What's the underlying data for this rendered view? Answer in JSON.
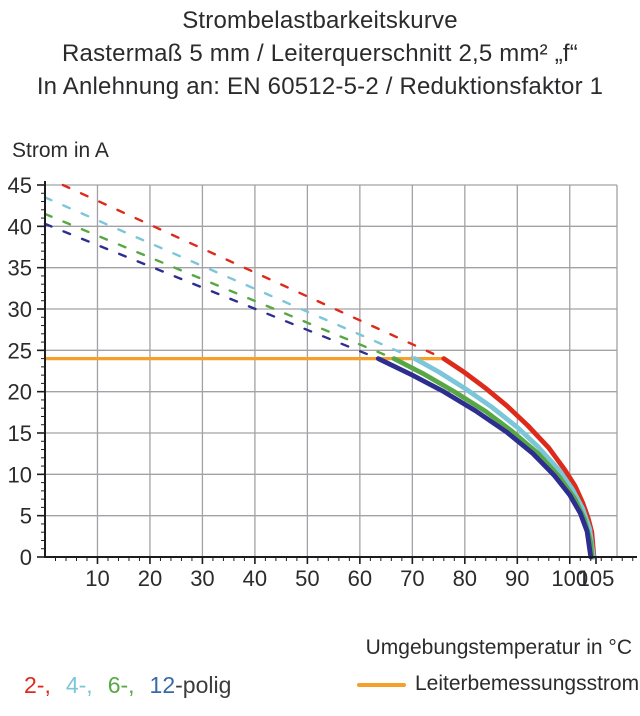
{
  "header": {
    "title_lines": [
      "Strombelastbarkeitskurve",
      "Rastermaß 5 mm / Leiterquerschnitt 2,5 mm² „f“",
      "In Anlehnung an: EN 60512-5-2 / Reduktionsfaktor 1"
    ]
  },
  "chart_data": {
    "type": "line",
    "title": "Strombelastbarkeitskurve",
    "ylabel": "Strom in A",
    "xlabel": "Umgebungstemperatur in °C",
    "x_domain": [
      0,
      109
    ],
    "y_domain": [
      0,
      45
    ],
    "x_ticks": [
      {
        "v": 10,
        "label": "10"
      },
      {
        "v": 20,
        "label": "20"
      },
      {
        "v": 30,
        "label": "30"
      },
      {
        "v": 40,
        "label": "40"
      },
      {
        "v": 50,
        "label": "50"
      },
      {
        "v": 60,
        "label": "60"
      },
      {
        "v": 70,
        "label": "70"
      },
      {
        "v": 80,
        "label": "80"
      },
      {
        "v": 90,
        "label": "90"
      },
      {
        "v": 100,
        "label": "100"
      },
      {
        "v": 105,
        "label": "105"
      }
    ],
    "y_ticks": [
      {
        "v": 0,
        "label": "0"
      },
      {
        "v": 5,
        "label": "5"
      },
      {
        "v": 10,
        "label": "10"
      },
      {
        "v": 15,
        "label": "15"
      },
      {
        "v": 20,
        "label": "20"
      },
      {
        "v": 25,
        "label": "25"
      },
      {
        "v": 30,
        "label": "30"
      },
      {
        "v": 35,
        "label": "35"
      },
      {
        "v": 40,
        "label": "40"
      },
      {
        "v": 45,
        "label": "45"
      }
    ],
    "x_minor_step": 2,
    "y_minor_step": 1,
    "grid": {
      "color": "#a2a2a6",
      "x_lines": [
        10,
        20,
        30,
        40,
        50,
        60,
        70,
        80,
        90,
        100
      ],
      "y_lines": [
        5,
        10,
        15,
        20,
        25,
        30,
        35,
        40,
        45
      ]
    },
    "axis_color": "#1c1c1e",
    "tick_label_color": "#2b2b2d",
    "rated_line": {
      "name": "Leiterbemessungsstrom",
      "color": "#f6a02c",
      "value": 24,
      "x_start": 0,
      "x_end": 76
    },
    "series": [
      {
        "name": "2-polig",
        "color": "#dd2a1b",
        "dashed": [
          [
            3.4,
            45
          ],
          [
            76,
            24
          ]
        ],
        "solid": [
          [
            76,
            24
          ],
          [
            80,
            22.3
          ],
          [
            84,
            20.4
          ],
          [
            88,
            18.3
          ],
          [
            92,
            15.9
          ],
          [
            96,
            13.2
          ],
          [
            99,
            10.6
          ],
          [
            101,
            8.6
          ],
          [
            102.5,
            6.5
          ],
          [
            103.5,
            4.7
          ],
          [
            104.2,
            3.0
          ],
          [
            104.6,
            0
          ]
        ]
      },
      {
        "name": "4-polig",
        "color": "#7bc6d8",
        "dashed": [
          [
            0,
            43.5
          ],
          [
            70.5,
            24
          ]
        ],
        "solid": [
          [
            70.5,
            24
          ],
          [
            75,
            22.4
          ],
          [
            80,
            20.4
          ],
          [
            85,
            18.2
          ],
          [
            90,
            15.7
          ],
          [
            94,
            13.3
          ],
          [
            98,
            10.5
          ],
          [
            100.5,
            8.2
          ],
          [
            102.5,
            5.8
          ],
          [
            103.8,
            3.4
          ],
          [
            104.5,
            0
          ]
        ]
      },
      {
        "name": "6-polig",
        "color": "#57a845",
        "dashed": [
          [
            0,
            41.5
          ],
          [
            66.5,
            24
          ]
        ],
        "solid": [
          [
            66.5,
            24
          ],
          [
            72,
            22.2
          ],
          [
            78,
            20.0
          ],
          [
            84,
            17.6
          ],
          [
            89,
            15.2
          ],
          [
            94,
            12.5
          ],
          [
            98,
            9.7
          ],
          [
            101,
            7.0
          ],
          [
            102.8,
            4.6
          ],
          [
            104,
            1.7
          ],
          [
            104.2,
            0
          ]
        ]
      },
      {
        "name": "12-polig",
        "color": "#2d2e8f",
        "dashed": [
          [
            0,
            40.3
          ],
          [
            63.5,
            24
          ]
        ],
        "solid": [
          [
            63.5,
            24
          ],
          [
            70,
            22.0
          ],
          [
            76,
            20.0
          ],
          [
            82,
            17.7
          ],
          [
            88,
            15.1
          ],
          [
            93,
            12.5
          ],
          [
            97,
            9.9
          ],
          [
            100,
            7.5
          ],
          [
            102,
            5.3
          ],
          [
            103.3,
            3.1
          ],
          [
            104,
            0
          ]
        ]
      }
    ]
  },
  "legend": {
    "pole_items": [
      {
        "label": "2-,",
        "color": "#dd2a1b",
        "gap": true
      },
      {
        "label": "4-,",
        "color": "#7bc6d8",
        "gap": true
      },
      {
        "label": "6-,",
        "color": "#57a845",
        "gap": true
      },
      {
        "label": "12",
        "color": "#3a6aa5",
        "gap": false
      },
      {
        "label": "-polig",
        "color": "#3c3c3e",
        "gap": false
      }
    ],
    "rated": {
      "label": "Leiterbemessungsstrom",
      "swatch_color": "#f6a02c"
    }
  }
}
